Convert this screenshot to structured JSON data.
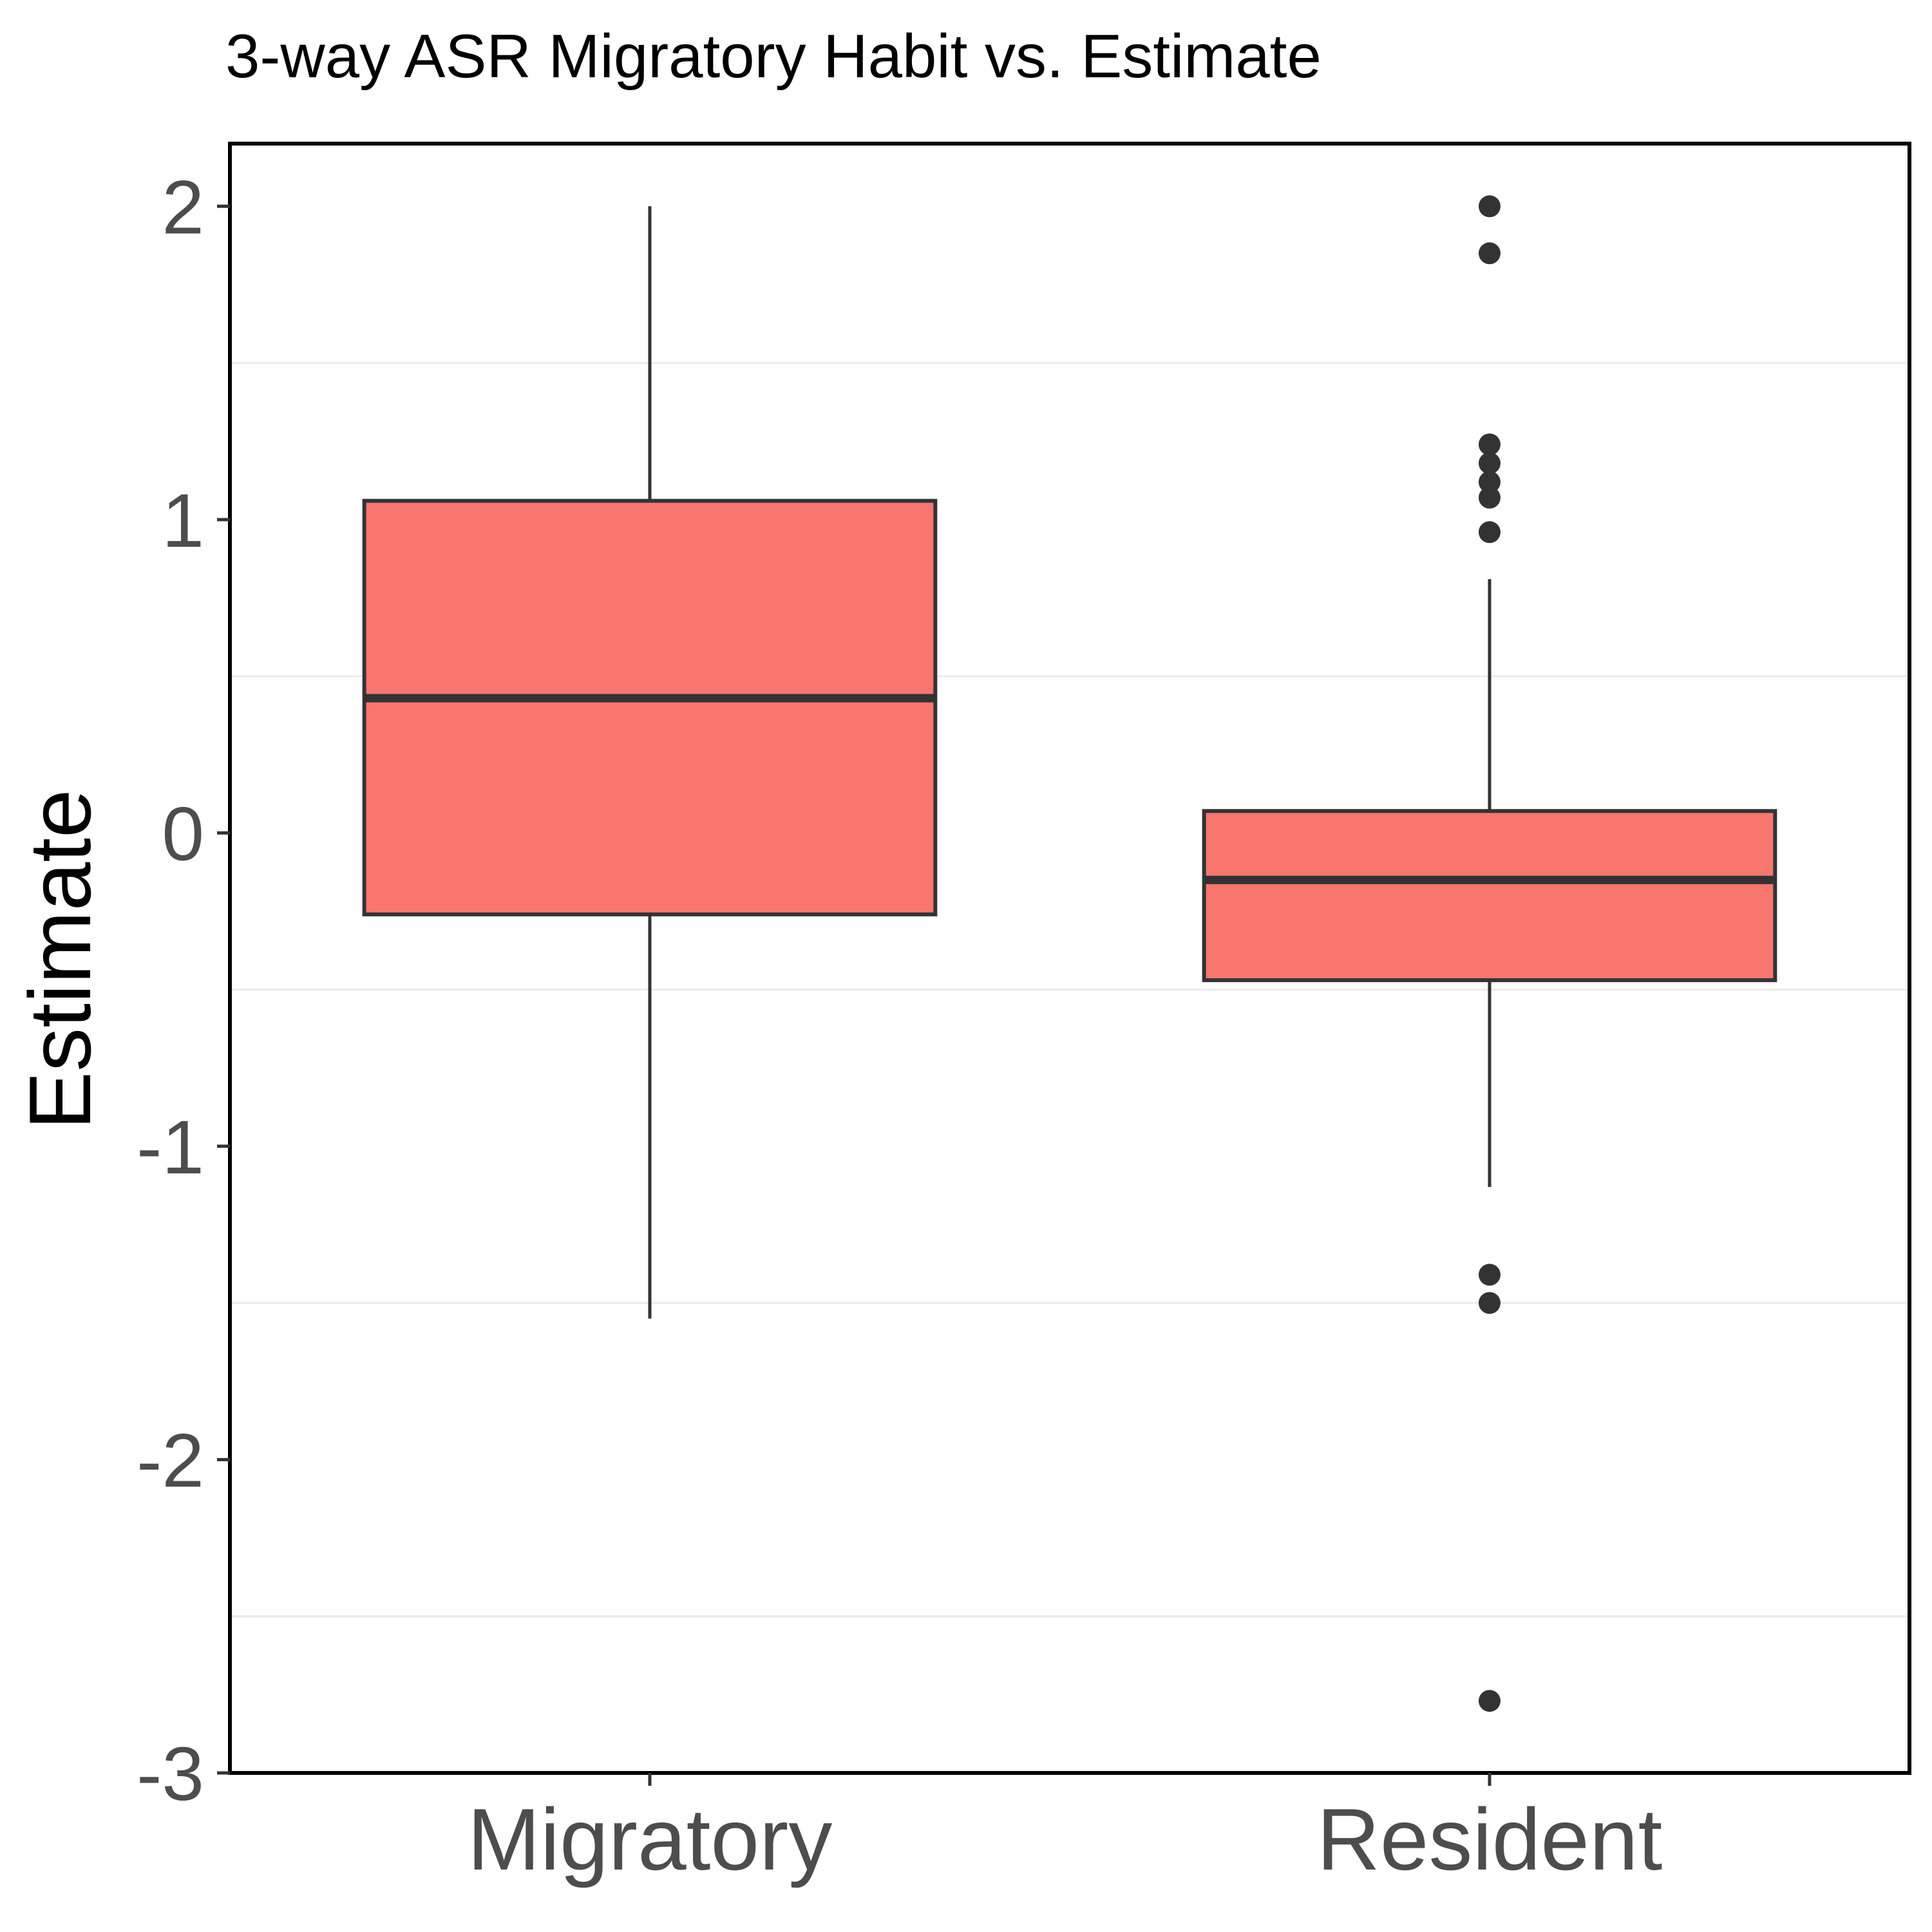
{
  "chart_data": {
    "type": "box",
    "title": "3-way ASR Migratory Habit vs. Estimate",
    "xlabel": "",
    "ylabel": "Estimate",
    "ylim": [
      -3,
      2.2
    ],
    "yticks": [
      2,
      1,
      0,
      -1,
      -2,
      -3
    ],
    "ytick_labels": [
      "2",
      "1",
      "0",
      "-1",
      "-2",
      "-3"
    ],
    "categories": [
      "Migratory",
      "Resident"
    ],
    "grid": "minor horizontal gridlines",
    "legend": "none",
    "fill_color": "#F8766D",
    "line_color": "#333333",
    "boxes": [
      {
        "category": "Migratory",
        "whisker_low": -1.55,
        "q1": -0.26,
        "median": 0.43,
        "q3": 1.06,
        "whisker_high": 2.0,
        "outliers": []
      },
      {
        "category": "Resident",
        "whisker_low": -1.13,
        "q1": -0.47,
        "median": -0.15,
        "q3": 0.07,
        "whisker_high": 0.81,
        "outliers": [
          2.0,
          1.85,
          1.24,
          1.18,
          1.12,
          1.07,
          0.96,
          -1.41,
          -1.5,
          -2.77
        ]
      }
    ]
  }
}
